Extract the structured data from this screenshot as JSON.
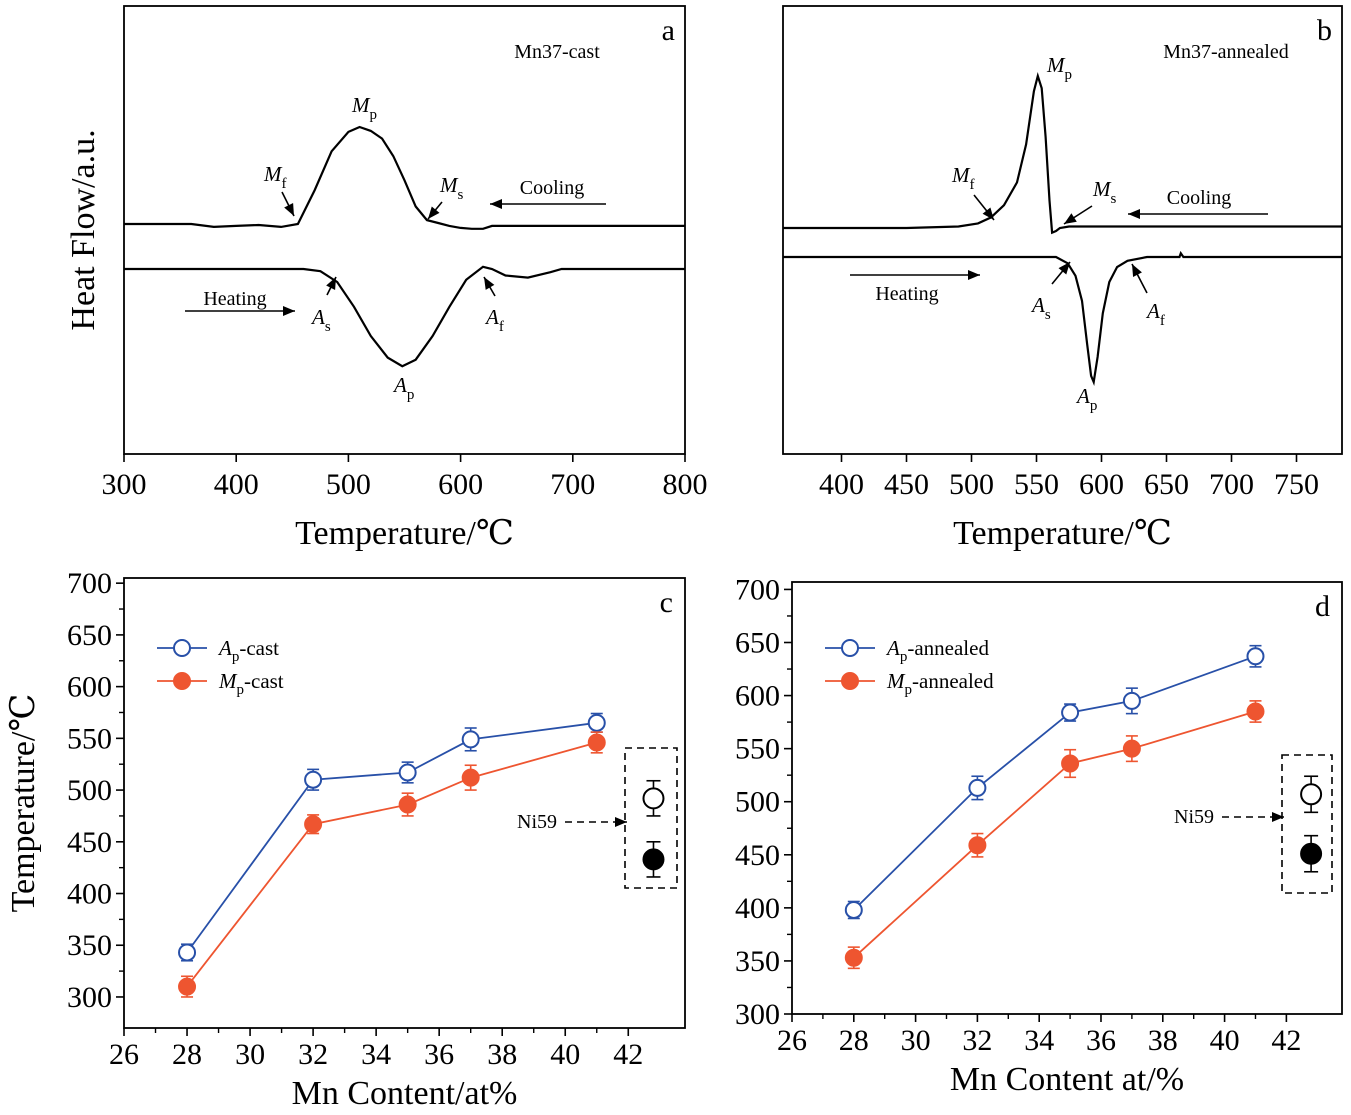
{
  "chart_data": [
    {
      "panel": "a",
      "type": "line",
      "sample_label": "Mn37-cast",
      "xlabel": "Temperature/℃",
      "ylabel": "Heat Flow/a.u.",
      "xlim": [
        300,
        800
      ],
      "xticks": [
        300,
        400,
        500,
        600,
        700,
        800
      ],
      "yticks_shown": false,
      "series": [
        {
          "name": "Cooling",
          "x": [
            300,
            360,
            380,
            400,
            420,
            440,
            455,
            470,
            485,
            500,
            510,
            520,
            530,
            540,
            550,
            560,
            570,
            580,
            590,
            600,
            610,
            620,
            628,
            635,
            700,
            800
          ],
          "y": [
            0.0,
            0.0,
            -0.03,
            -0.02,
            -0.01,
            -0.03,
            0.0,
            0.35,
            0.75,
            0.95,
            1.0,
            0.96,
            0.88,
            0.7,
            0.45,
            0.18,
            0.04,
            0.01,
            -0.02,
            -0.04,
            -0.05,
            -0.05,
            -0.02,
            -0.02,
            -0.02,
            -0.02
          ]
        },
        {
          "name": "Heating",
          "x": [
            300,
            420,
            460,
            475,
            490,
            505,
            520,
            535,
            548,
            560,
            575,
            590,
            605,
            620,
            628,
            640,
            660,
            680,
            690,
            700,
            800
          ],
          "y": [
            0.0,
            0.0,
            0.0,
            -0.02,
            -0.12,
            -0.35,
            -0.62,
            -0.82,
            -0.9,
            -0.84,
            -0.62,
            -0.35,
            -0.1,
            0.02,
            0.0,
            -0.06,
            -0.08,
            -0.03,
            0.0,
            0.0,
            0.0
          ]
        }
      ],
      "annotations": [
        {
          "sym": "M",
          "sub": "f"
        },
        {
          "sym": "M",
          "sub": "p"
        },
        {
          "sym": "M",
          "sub": "s"
        },
        {
          "text": "Cooling"
        },
        {
          "text": "Heating"
        },
        {
          "sym": "A",
          "sub": "s"
        },
        {
          "sym": "A",
          "sub": "p"
        },
        {
          "sym": "A",
          "sub": "f"
        }
      ]
    },
    {
      "panel": "b",
      "type": "line",
      "sample_label": "Mn37-annealed",
      "xlabel": "Temperature/℃",
      "ylabel": "",
      "xlim": [
        355,
        785
      ],
      "xticks": [
        400,
        450,
        500,
        550,
        600,
        650,
        700,
        750
      ],
      "yticks_shown": false,
      "series": [
        {
          "name": "Cooling",
          "x": [
            355,
            450,
            490,
            505,
            515,
            525,
            535,
            542,
            548,
            551,
            554,
            557,
            560,
            562,
            565,
            568,
            575,
            600,
            650,
            785
          ],
          "y": [
            0.0,
            0.0,
            0.01,
            0.03,
            0.07,
            0.15,
            0.3,
            0.55,
            0.9,
            1.0,
            0.92,
            0.6,
            0.18,
            -0.03,
            -0.02,
            0.0,
            0.01,
            0.01,
            0.01,
            0.01
          ]
        },
        {
          "name": "Heating",
          "x": [
            355,
            470,
            540,
            565,
            574,
            580,
            585,
            589,
            592,
            594,
            597,
            601,
            606,
            612,
            620,
            635,
            660,
            661,
            663,
            700,
            785
          ],
          "y": [
            0.0,
            0.0,
            0.0,
            0.0,
            -0.05,
            -0.15,
            -0.35,
            -0.7,
            -0.95,
            -1.0,
            -0.8,
            -0.45,
            -0.2,
            -0.08,
            -0.03,
            0.0,
            0.0,
            0.03,
            0.0,
            0.0,
            0.0
          ]
        }
      ],
      "annotations": [
        {
          "sym": "M",
          "sub": "p"
        },
        {
          "sym": "M",
          "sub": "f"
        },
        {
          "sym": "M",
          "sub": "s"
        },
        {
          "text": "Cooling"
        },
        {
          "text": "Heating"
        },
        {
          "sym": "A",
          "sub": "s"
        },
        {
          "sym": "A",
          "sub": "p"
        },
        {
          "sym": "A",
          "sub": "f"
        }
      ]
    },
    {
      "panel": "c",
      "type": "scatter",
      "xlabel": "Mn Content/at%",
      "ylabel": "Temperature/℃",
      "xlim": [
        26,
        43.8
      ],
      "ylim": [
        270,
        705
      ],
      "xticks": [
        26,
        28,
        30,
        32,
        34,
        36,
        38,
        40,
        42
      ],
      "yticks": [
        300,
        350,
        400,
        450,
        500,
        550,
        600,
        650,
        700
      ],
      "legend_position": "top-left",
      "series": [
        {
          "legend_sym": "A",
          "legend_sub": "p",
          "legend_suffix": "-cast",
          "marker": "open-circle",
          "color": "#2850a8",
          "x": [
            28,
            32,
            35,
            37,
            41
          ],
          "y": [
            343,
            510,
            517,
            549,
            565
          ],
          "err": [
            8,
            10,
            10,
            11,
            9
          ]
        },
        {
          "legend_sym": "M",
          "legend_sub": "p",
          "legend_suffix": "-cast",
          "marker": "filled-circle",
          "color": "#ee5530",
          "x": [
            28,
            32,
            35,
            37,
            41
          ],
          "y": [
            310,
            467,
            486,
            512,
            546
          ],
          "err": [
            10,
            9,
            11,
            12,
            10
          ]
        }
      ],
      "reference": {
        "label": "Ni59",
        "x": 42.8,
        "points": [
          {
            "y": 492,
            "err": 17,
            "marker": "open-circle"
          },
          {
            "y": 433,
            "err": 17,
            "marker": "filled-circle"
          }
        ]
      }
    },
    {
      "panel": "d",
      "type": "scatter",
      "xlabel": "Mn Content at/%",
      "ylabel": "",
      "xlim": [
        26,
        43.8
      ],
      "ylim": [
        300,
        707
      ],
      "xticks": [
        26,
        28,
        30,
        32,
        34,
        36,
        38,
        40,
        42
      ],
      "yticks": [
        300,
        350,
        400,
        450,
        500,
        550,
        600,
        650,
        700
      ],
      "legend_position": "top-left",
      "series": [
        {
          "legend_sym": "A",
          "legend_sub": "p",
          "legend_suffix": "-annealed",
          "marker": "open-circle",
          "color": "#2850a8",
          "x": [
            28,
            32,
            35,
            37,
            41
          ],
          "y": [
            398,
            513,
            584,
            595,
            637
          ],
          "err": [
            8,
            11,
            8,
            12,
            10
          ]
        },
        {
          "legend_sym": "M",
          "legend_sub": "p",
          "legend_suffix": "-annealed",
          "marker": "filled-circle",
          "color": "#ee5530",
          "x": [
            28,
            32,
            35,
            37,
            41
          ],
          "y": [
            353,
            459,
            536,
            550,
            585
          ],
          "err": [
            10,
            11,
            13,
            12,
            10
          ]
        }
      ],
      "reference": {
        "label": "Ni59",
        "x": 42.8,
        "points": [
          {
            "y": 507,
            "err": 17,
            "marker": "open-circle"
          },
          {
            "y": 451,
            "err": 17,
            "marker": "filled-circle"
          }
        ]
      }
    }
  ]
}
